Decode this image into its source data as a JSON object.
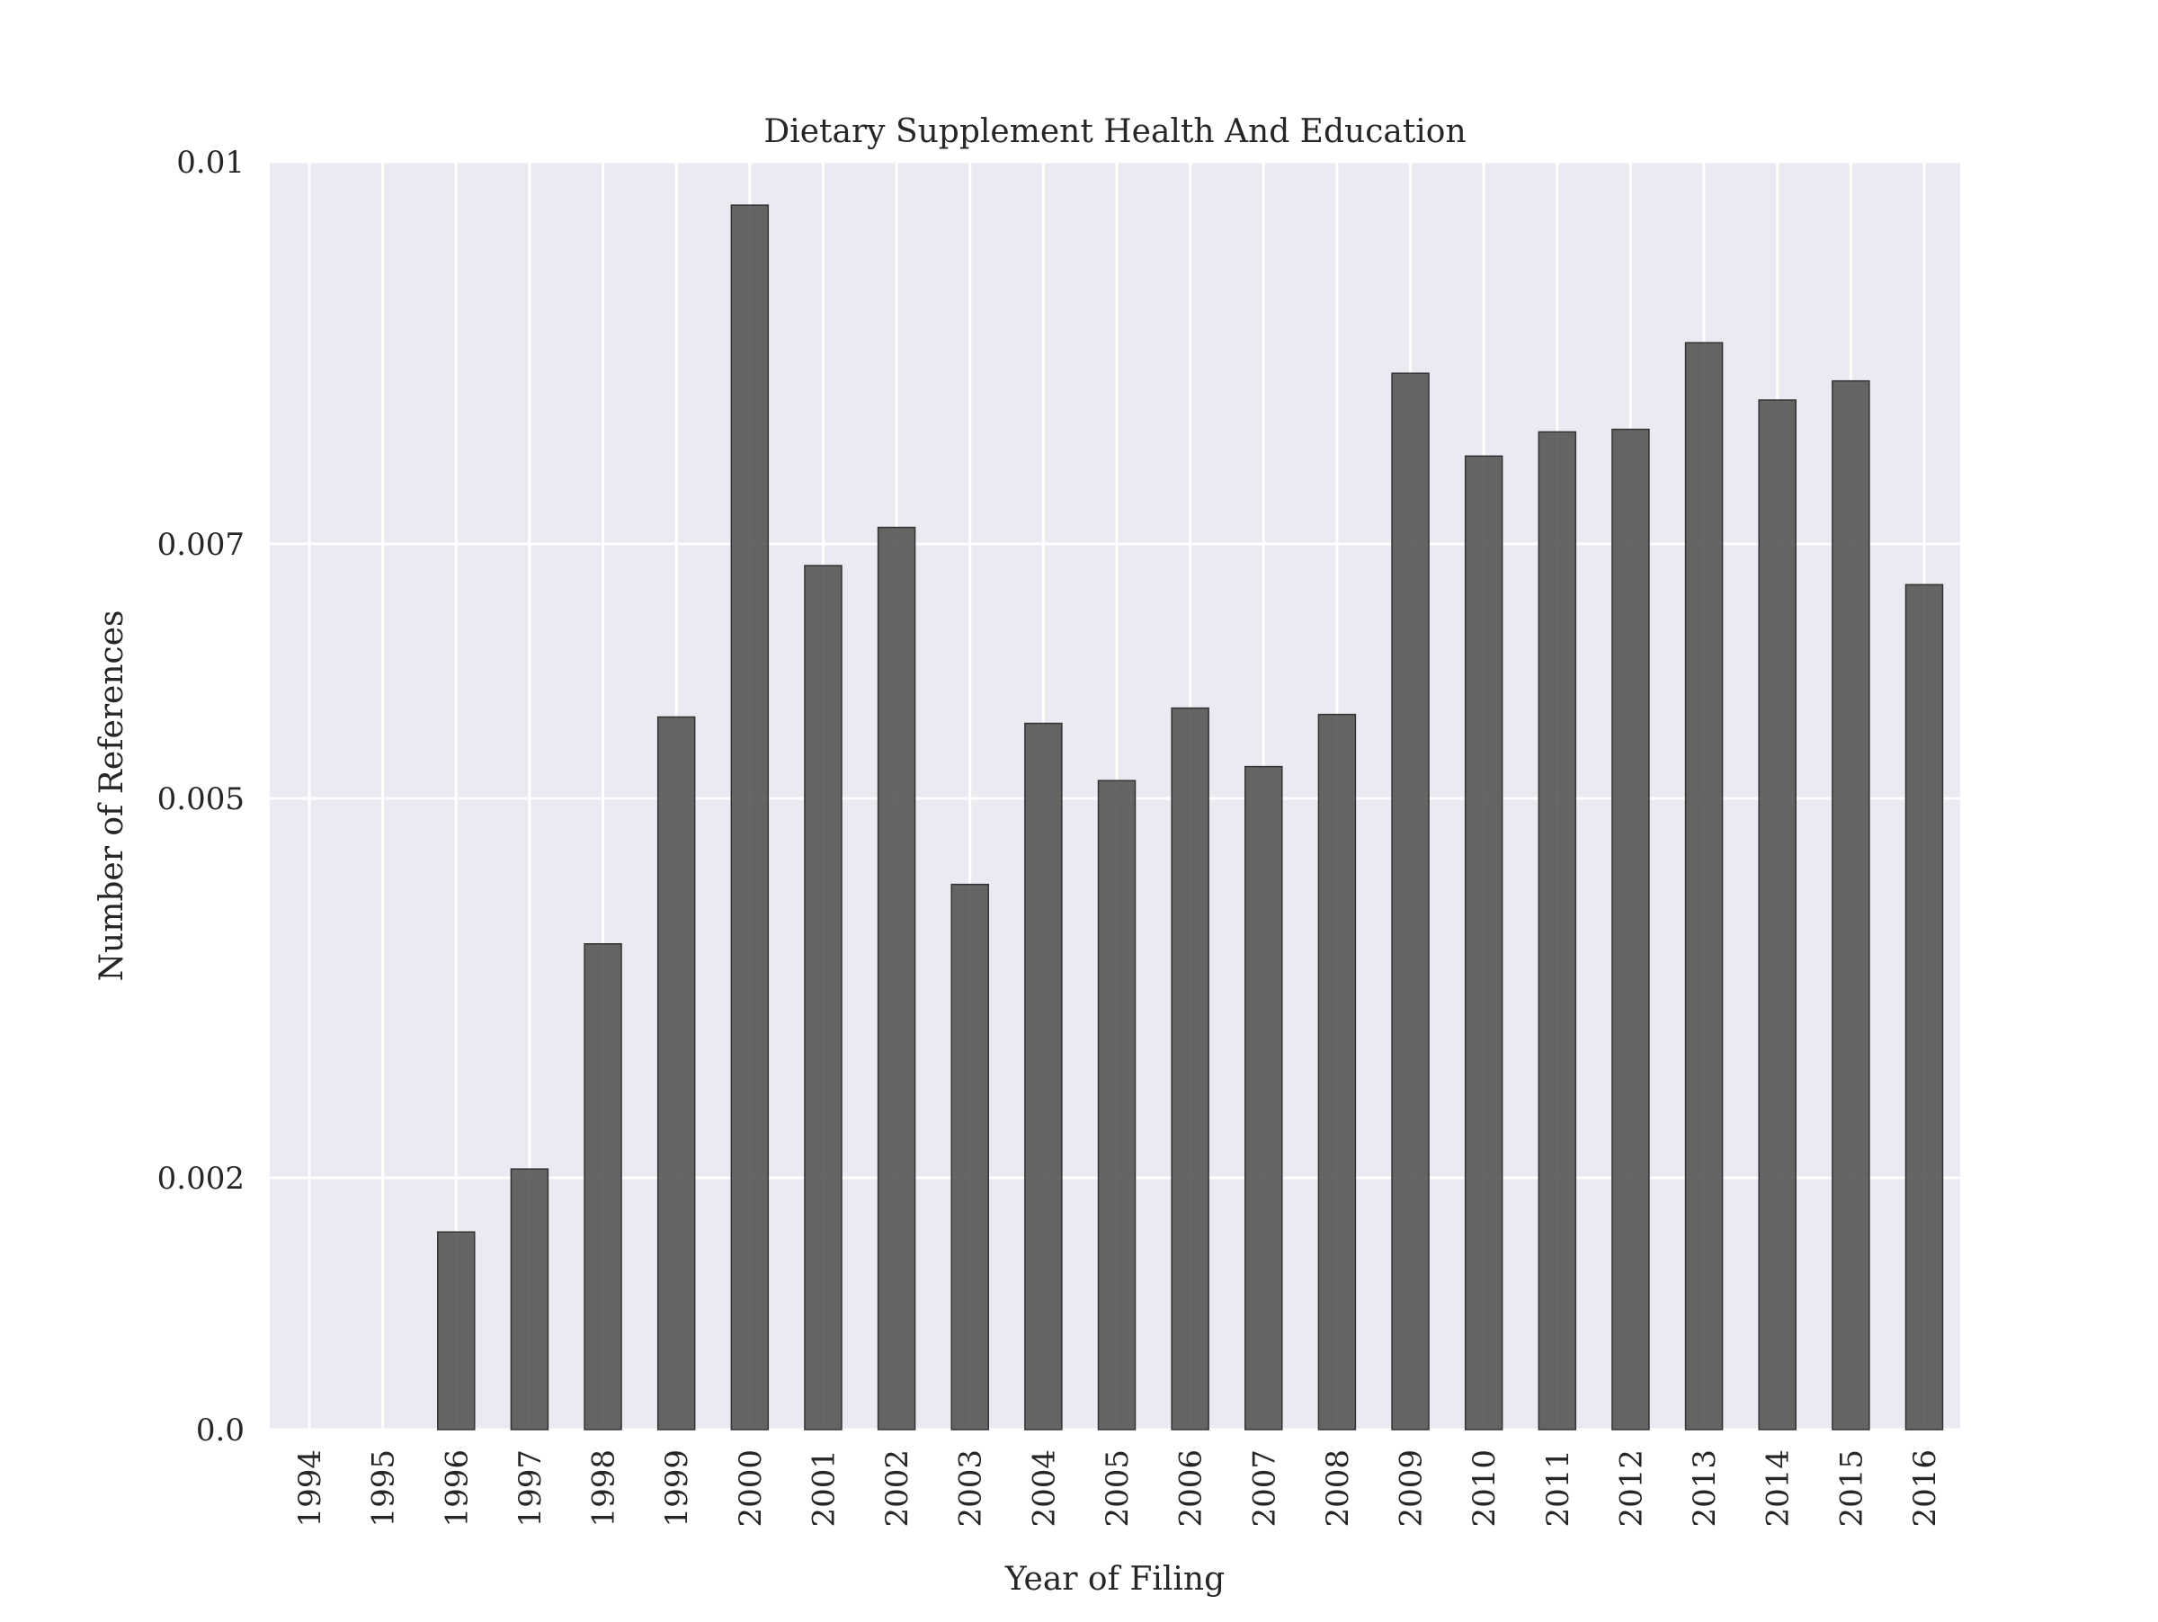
{
  "chart_data": {
    "type": "bar",
    "title": "Dietary Supplement Health And Education",
    "xlabel": "Year of Filing",
    "ylabel": "Number of References",
    "categories": [
      "1994",
      "1995",
      "1996",
      "1997",
      "1998",
      "1999",
      "2000",
      "2001",
      "2002",
      "2003",
      "2004",
      "2005",
      "2006",
      "2007",
      "2008",
      "2009",
      "2010",
      "2011",
      "2012",
      "2013",
      "2014",
      "2015",
      "2016"
    ],
    "values": [
      0.0,
      0.0,
      0.00157,
      0.00207,
      0.00385,
      0.00564,
      0.00966,
      0.00683,
      0.00713,
      0.00432,
      0.00559,
      0.00514,
      0.00571,
      0.00525,
      0.00566,
      0.00834,
      0.00769,
      0.00788,
      0.0079,
      0.00858,
      0.00813,
      0.00828,
      0.00668
    ],
    "yticks": [
      {
        "value": 0.0,
        "label": "0.0"
      },
      {
        "value": 0.002,
        "label": "0.002"
      },
      {
        "value": 0.005,
        "label": "0.005"
      },
      {
        "value": 0.007,
        "label": "0.007"
      },
      {
        "value": 0.01,
        "label": "0.01"
      }
    ],
    "ylim": [
      0.0,
      0.01
    ],
    "grid": true,
    "colors": {
      "background": "#eaeaf2",
      "grid": "#ffffff",
      "bar": "#555555",
      "bar_edge": "#333333"
    }
  }
}
